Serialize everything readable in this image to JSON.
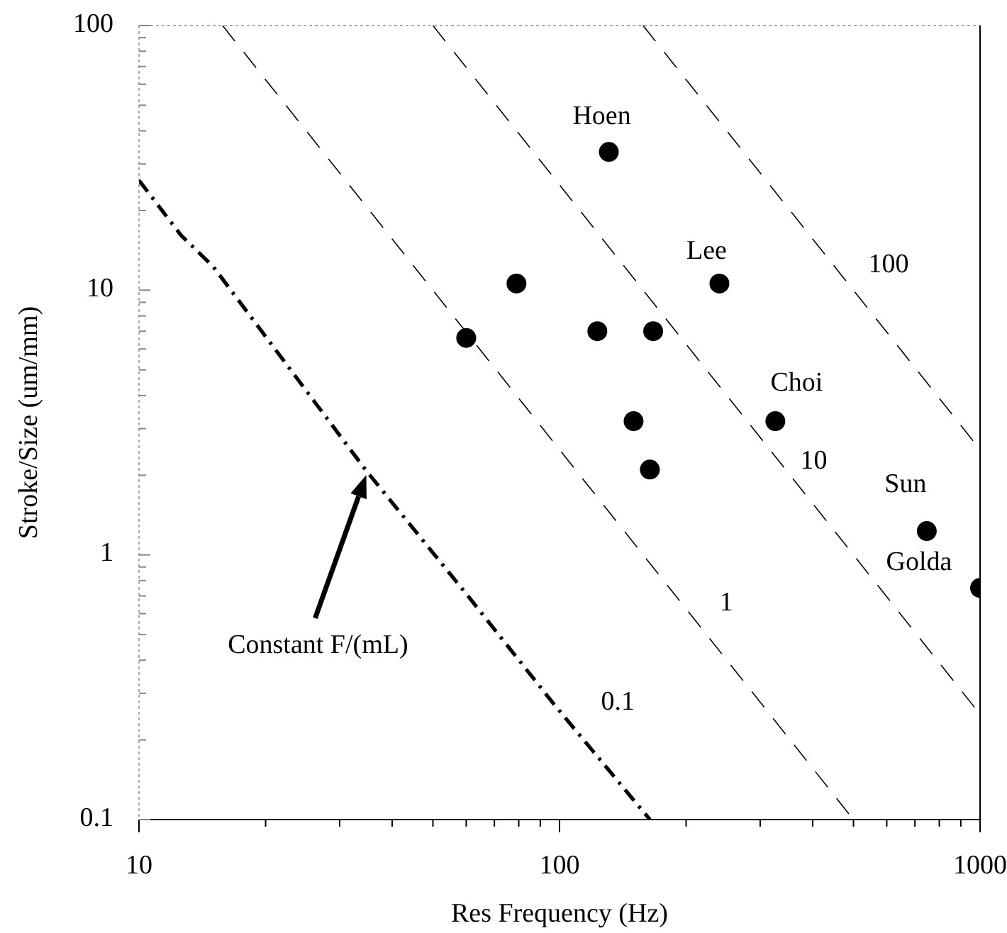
{
  "chart_data": {
    "type": "scatter",
    "xlabel": "Res Frequency (Hz)",
    "ylabel": "Stroke/Size (um/mm)",
    "log": "xy",
    "xlim": [
      10,
      1000
    ],
    "ylim": [
      0.1,
      100
    ],
    "xticks": [
      10,
      {
        "value": 20,
        "label": null
      },
      {
        "value": 30,
        "label": null
      },
      {
        "value": 40,
        "label": null
      },
      {
        "value": 50,
        "label": null
      },
      {
        "value": 60,
        "label": null
      },
      {
        "value": 70,
        "label": null
      },
      {
        "value": 80,
        "label": null
      },
      {
        "value": 90,
        "label": null
      },
      100,
      {
        "value": 200,
        "label": null
      },
      {
        "value": 300,
        "label": null
      },
      {
        "value": 400,
        "label": null
      },
      {
        "value": 500,
        "label": null
      },
      {
        "value": 600,
        "label": null
      },
      {
        "value": 700,
        "label": null
      },
      {
        "value": 800,
        "label": null
      },
      {
        "value": 900,
        "label": null
      },
      1000
    ],
    "yticks": [
      0.1,
      {
        "value": 0.2,
        "label": null
      },
      {
        "value": 0.3,
        "label": null
      },
      {
        "value": 0.4,
        "label": null
      },
      {
        "value": 0.5,
        "label": null
      },
      {
        "value": 0.6,
        "label": null
      },
      {
        "value": 0.7,
        "label": null
      },
      {
        "value": 0.8,
        "label": null
      },
      {
        "value": 0.9,
        "label": null
      },
      1,
      {
        "value": 2,
        "label": null
      },
      {
        "value": 3,
        "label": null
      },
      {
        "value": 4,
        "label": null
      },
      {
        "value": 5,
        "label": null
      },
      {
        "value": 6,
        "label": null
      },
      {
        "value": 7,
        "label": null
      },
      {
        "value": 8,
        "label": null
      },
      {
        "value": 9,
        "label": null
      },
      10,
      {
        "value": 20,
        "label": null
      },
      {
        "value": 30,
        "label": null
      },
      {
        "value": 40,
        "label": null
      },
      {
        "value": 50,
        "label": null
      },
      {
        "value": 60,
        "label": null
      },
      {
        "value": 70,
        "label": null
      },
      {
        "value": 80,
        "label": null
      },
      {
        "value": 90,
        "label": null
      },
      100
    ],
    "grid": false,
    "marker": "circle",
    "series": [
      {
        "color": "#000000",
        "x": [
          131,
          240,
          79,
          60,
          123,
          167,
          150,
          164,
          326,
          747,
          1000
        ],
        "values": [
          33.3,
          10.6,
          10.6,
          6.6,
          7.0,
          7.0,
          3.2,
          2.1,
          3.2,
          1.23,
          0.75
        ]
      },
      {
        "type": "line",
        "color": "#000000",
        "line_style": "dotted",
        "marker": "none",
        "x": [
          10,
          12.6,
          15,
          34.7,
          59.7,
          96.6,
          164
        ],
        "values": [
          26,
          16.1,
          12.3,
          2.08,
          0.72,
          0.275,
          0.1
        ]
      },
      {
        "type": "line",
        "color": "#000000",
        "line_style": "dashed",
        "marker": "none",
        "x": [
          15.8,
          500
        ],
        "values": [
          100,
          0.1
        ]
      },
      {
        "type": "line",
        "color": "#000000",
        "line_style": "dashed",
        "marker": "none",
        "x": [
          50,
          1000
        ],
        "values": [
          100,
          0.25
        ]
      },
      {
        "type": "line",
        "color": "#000000",
        "line_style": "dashed",
        "marker": "none",
        "x": [
          158,
          1000
        ],
        "values": [
          100,
          2.5
        ]
      }
    ],
    "annotations": [
      {
        "text": "Hoen",
        "x": 131,
        "y": 33.3
      },
      {
        "text": "Lee",
        "x": 240,
        "y": 10.6
      },
      {
        "text": "Choi",
        "x": 326,
        "y": 3.2
      },
      {
        "text": "Sun",
        "x": 747,
        "y": 1.23
      },
      {
        "text": "Golda",
        "x": 1000,
        "y": 0.75
      },
      {
        "text": "0.1",
        "x": 97,
        "y": 0.275
      },
      {
        "text": "1",
        "x": 196,
        "y": 0.65
      },
      {
        "text": "10",
        "x": 334,
        "y": 2.24
      },
      {
        "text": "100",
        "x": 451,
        "y": 12.3
      },
      "Constant F/(mL)"
    ]
  }
}
